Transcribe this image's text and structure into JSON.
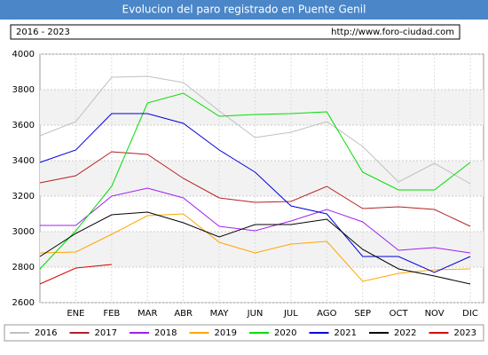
{
  "chart_data": {
    "type": "line",
    "title": "Evolucion del paro registrado en Puente Genil",
    "subtitle": "2016 - 2023",
    "source": "http://www.foro-ciudad.com",
    "categories": [
      null,
      "ENE",
      "FEB",
      "MAR",
      "ABR",
      "MAY",
      "JUN",
      "JUL",
      "AGO",
      "SEP",
      "OCT",
      "NOV",
      "DIC"
    ],
    "ylim": [
      2600,
      4000
    ],
    "yticks": [
      2600,
      2800,
      3000,
      3200,
      3400,
      3600,
      3800,
      4000
    ],
    "grid": true,
    "legend": "bottom",
    "series": [
      {
        "name": "2016",
        "color": "#c0c0c0",
        "values": [
          3540,
          3620,
          3870,
          3875,
          3840,
          3680,
          3530,
          3560,
          3620,
          3480,
          3280,
          3385,
          3270
        ]
      },
      {
        "name": "2017",
        "color": "#b22222",
        "values": [
          3275,
          3315,
          3450,
          3435,
          3300,
          3190,
          3165,
          3170,
          3255,
          3130,
          3140,
          3125,
          3030
        ]
      },
      {
        "name": "2018",
        "color": "#a020f0",
        "values": [
          3035,
          3035,
          3200,
          3245,
          3190,
          3030,
          3005,
          3060,
          3125,
          3055,
          2895,
          2910,
          2880
        ]
      },
      {
        "name": "2019",
        "color": "#ffa500",
        "values": [
          2880,
          2885,
          2985,
          3090,
          3100,
          2940,
          2880,
          2930,
          2945,
          2720,
          2765,
          2785,
          2790
        ]
      },
      {
        "name": "2020",
        "color": "#00dd00",
        "values": [
          2790,
          3005,
          3255,
          3725,
          3780,
          3650,
          3660,
          3665,
          3675,
          3335,
          3235,
          3235,
          3390
        ]
      },
      {
        "name": "2021",
        "color": "#0000dd",
        "values": [
          3390,
          3460,
          3665,
          3665,
          3610,
          3460,
          3335,
          3145,
          3100,
          2860,
          2860,
          2770,
          2860
        ]
      },
      {
        "name": "2022",
        "color": "#000000",
        "values": [
          2860,
          2990,
          3095,
          3110,
          3050,
          2970,
          3040,
          3040,
          3070,
          2900,
          2790,
          2750,
          2705
        ]
      },
      {
        "name": "2023",
        "color": "#dd0000",
        "values": [
          2705,
          2795,
          2815,
          null,
          null,
          null,
          null,
          null,
          null,
          null,
          null,
          null,
          null
        ]
      }
    ]
  }
}
